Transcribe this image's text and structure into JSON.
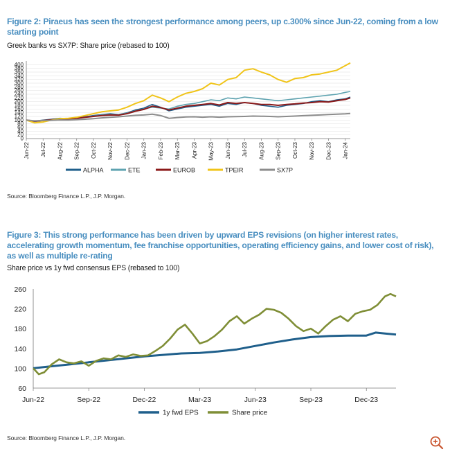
{
  "figure2": {
    "title": "Figure 2: Piraeus has seen the strongest performance among peers, up c.300% since Jun-22, coming from a low starting point",
    "subtitle": "Greek banks vs SX7P: Share price (rebased to 100)",
    "source": "Source: Bloomberg Finance L.P., J.P. Morgan."
  },
  "figure3": {
    "title": "Figure 3: This strong performance has been driven by upward EPS revisions (on higher interest rates, accelerating growth momentum, fee franchise opportunities, operating efficiency gains, and lower cost of risk), as well as multiple re-rating",
    "subtitle": "Share price vs 1y fwd consensus EPS (rebased to 100)",
    "source": "Source: Bloomberg Finance L.P., J.P. Morgan."
  },
  "zoom_icon": "zoom-in-icon",
  "chart_data": [
    {
      "type": "line",
      "title": "Greek banks vs SX7P: Share price (rebased to 100)",
      "ylim": [
        0,
        420
      ],
      "yticks": [
        0,
        20,
        40,
        60,
        80,
        100,
        120,
        140,
        160,
        180,
        200,
        220,
        240,
        260,
        280,
        300,
        320,
        340,
        360,
        380,
        400
      ],
      "x_range": [
        0,
        19.3
      ],
      "categories": [
        "Jun-22",
        "Jul-22",
        "Aug-22",
        "Sep-22",
        "Oct-22",
        "Nov-22",
        "Dec-22",
        "Jan-23",
        "Feb-23",
        "Mar-23",
        "Apr-23",
        "May-23",
        "Jun-23",
        "Jul-23",
        "Aug-23",
        "Sep-23",
        "Oct-23",
        "Nov-23",
        "Dec-23",
        "Jan-24"
      ],
      "legend_position": "bottom",
      "series": [
        {
          "name": "ALPHA",
          "color": "#1f5f8b",
          "width": 1.6,
          "x": [
            0,
            0.5,
            1,
            1.5,
            2,
            2.5,
            3,
            3.5,
            4,
            4.5,
            5,
            5.5,
            6,
            6.5,
            7,
            7.5,
            8,
            8.5,
            9,
            9.5,
            10,
            10.5,
            11,
            11.5,
            12,
            12.5,
            13,
            13.5,
            14,
            14.5,
            15,
            15.5,
            16,
            16.5,
            17,
            17.5,
            18,
            18.5,
            19,
            19.3
          ],
          "values": [
            100,
            95,
            100,
            105,
            110,
            108,
            112,
            118,
            125,
            130,
            135,
            130,
            140,
            155,
            165,
            185,
            170,
            150,
            160,
            170,
            175,
            180,
            185,
            175,
            190,
            185,
            195,
            190,
            180,
            175,
            170,
            180,
            185,
            190,
            200,
            205,
            200,
            210,
            215,
            225
          ]
        },
        {
          "name": "ETE",
          "color": "#5ea3b0",
          "width": 1.6,
          "x": [
            0,
            0.5,
            1,
            1.5,
            2,
            2.5,
            3,
            3.5,
            4,
            4.5,
            5,
            5.5,
            6,
            6.5,
            7,
            7.5,
            8,
            8.5,
            9,
            9.5,
            10,
            10.5,
            11,
            11.5,
            12,
            12.5,
            13,
            13.5,
            14,
            14.5,
            15,
            15.5,
            16,
            16.5,
            17,
            17.5,
            18,
            18.5,
            19,
            19.3
          ],
          "values": [
            100,
            92,
            97,
            102,
            108,
            106,
            110,
            116,
            122,
            128,
            132,
            130,
            138,
            150,
            160,
            170,
            165,
            160,
            175,
            185,
            190,
            200,
            210,
            205,
            220,
            215,
            225,
            220,
            215,
            210,
            205,
            210,
            215,
            220,
            225,
            230,
            235,
            240,
            250,
            255
          ]
        },
        {
          "name": "EUROB",
          "color": "#8b1a1a",
          "width": 2,
          "x": [
            0,
            0.5,
            1,
            1.5,
            2,
            2.5,
            3,
            3.5,
            4,
            4.5,
            5,
            5.5,
            6,
            6.5,
            7,
            7.5,
            8,
            8.5,
            9,
            9.5,
            10,
            10.5,
            11,
            11.5,
            12,
            12.5,
            13,
            13.5,
            14,
            14.5,
            15,
            15.5,
            16,
            16.5,
            17,
            17.5,
            18,
            18.5,
            19,
            19.3
          ],
          "values": [
            100,
            94,
            98,
            102,
            106,
            105,
            110,
            115,
            120,
            125,
            128,
            127,
            135,
            148,
            158,
            175,
            168,
            155,
            165,
            175,
            180,
            185,
            190,
            182,
            195,
            190,
            195,
            190,
            185,
            185,
            180,
            185,
            188,
            192,
            195,
            200,
            198,
            205,
            212,
            220
          ]
        },
        {
          "name": "TPEIR",
          "color": "#f0c419",
          "width": 2,
          "x": [
            0,
            0.5,
            1,
            1.5,
            2,
            2.5,
            3,
            3.5,
            4,
            4.5,
            5,
            5.5,
            6,
            6.5,
            7,
            7.5,
            8,
            8.5,
            9,
            9.5,
            10,
            10.5,
            11,
            11.5,
            12,
            12.5,
            13,
            13.5,
            14,
            14.5,
            15,
            15.5,
            16,
            16.5,
            17,
            17.5,
            18,
            18.5,
            19,
            19.3
          ],
          "values": [
            100,
            85,
            90,
            100,
            108,
            110,
            115,
            125,
            135,
            145,
            150,
            155,
            170,
            190,
            205,
            235,
            220,
            200,
            225,
            245,
            255,
            270,
            300,
            290,
            320,
            330,
            370,
            378,
            360,
            345,
            320,
            305,
            325,
            330,
            345,
            350,
            360,
            370,
            395,
            410
          ]
        },
        {
          "name": "SX7P",
          "color": "#8c8c8c",
          "width": 2,
          "x": [
            0,
            0.5,
            1,
            1.5,
            2,
            2.5,
            3,
            3.5,
            4,
            4.5,
            5,
            5.5,
            6,
            6.5,
            7,
            7.5,
            8,
            8.5,
            9,
            9.5,
            10,
            10.5,
            11,
            11.5,
            12,
            12.5,
            13,
            13.5,
            14,
            14.5,
            15,
            15.5,
            16,
            16.5,
            17,
            17.5,
            18,
            18.5,
            19,
            19.3
          ],
          "values": [
            100,
            96,
            98,
            99,
            101,
            100,
            102,
            105,
            108,
            112,
            115,
            118,
            122,
            126,
            128,
            132,
            125,
            110,
            114,
            117,
            118,
            116,
            118,
            116,
            118,
            119,
            120,
            122,
            121,
            120,
            118,
            120,
            122,
            124,
            126,
            128,
            130,
            132,
            134,
            136
          ]
        }
      ]
    },
    {
      "type": "line",
      "title": "Share price vs 1y fwd consensus EPS (rebased to 100)",
      "ylim": [
        60,
        260
      ],
      "yticks": [
        60,
        100,
        140,
        180,
        220,
        260
      ],
      "x_range": [
        0,
        19.6
      ],
      "categories": [
        "Jun-22",
        "Sep-22",
        "Dec-22",
        "Mar-23",
        "Jun-23",
        "Sep-23",
        "Dec-23"
      ],
      "category_positions": [
        0,
        3,
        6,
        9,
        12,
        15,
        18
      ],
      "legend_position": "bottom",
      "series": [
        {
          "name": "1y fwd EPS",
          "color": "#1f5f8b",
          "width": 3,
          "x": [
            0,
            1,
            2,
            3,
            4,
            5,
            6,
            7,
            8,
            9,
            10,
            11,
            12,
            13,
            14,
            15,
            16,
            17,
            18,
            18.5,
            19,
            19.6
          ],
          "values": [
            100,
            104,
            108,
            112,
            116,
            120,
            124,
            127,
            130,
            131,
            134,
            138,
            145,
            152,
            158,
            163,
            165,
            166,
            166,
            172,
            170,
            168
          ]
        },
        {
          "name": "Share price",
          "color": "#7f8e36",
          "width": 2.6,
          "x": [
            0,
            0.3,
            0.6,
            1,
            1.4,
            1.8,
            2.2,
            2.6,
            3,
            3.4,
            3.8,
            4.2,
            4.6,
            5,
            5.4,
            5.8,
            6.2,
            6.6,
            7,
            7.4,
            7.8,
            8.2,
            8.6,
            9,
            9.4,
            9.8,
            10.2,
            10.6,
            11,
            11.4,
            11.8,
            12.2,
            12.6,
            13,
            13.4,
            13.8,
            14.2,
            14.6,
            15,
            15.4,
            15.8,
            16.2,
            16.6,
            17,
            17.4,
            17.8,
            18.2,
            18.6,
            19,
            19.3,
            19.6
          ],
          "values": [
            100,
            88,
            92,
            108,
            118,
            112,
            110,
            114,
            105,
            115,
            120,
            118,
            126,
            123,
            128,
            125,
            126,
            135,
            145,
            160,
            178,
            188,
            170,
            150,
            155,
            165,
            178,
            195,
            205,
            190,
            200,
            208,
            220,
            218,
            212,
            200,
            185,
            175,
            180,
            170,
            185,
            198,
            205,
            195,
            210,
            215,
            218,
            228,
            245,
            250,
            245
          ]
        }
      ]
    }
  ]
}
